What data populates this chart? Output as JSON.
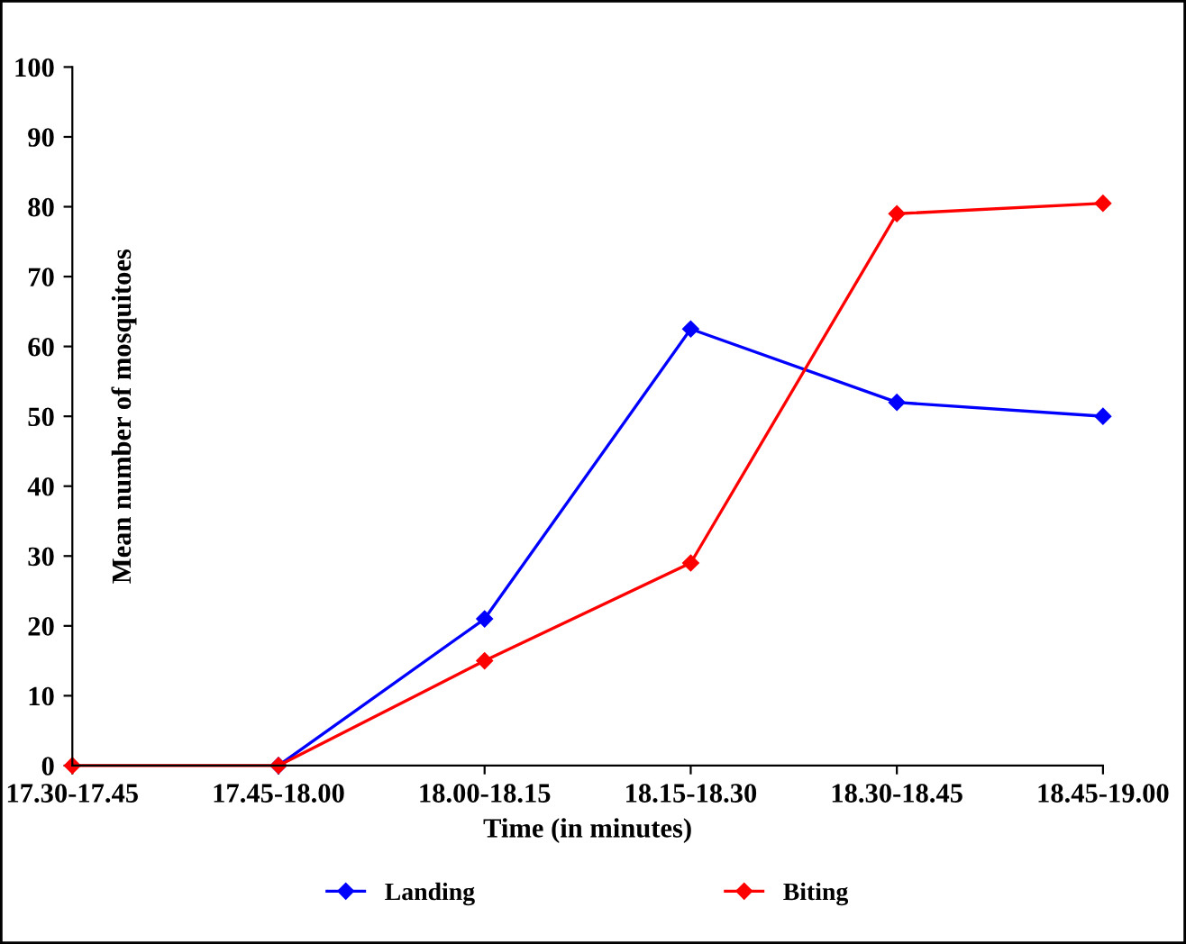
{
  "chart_data": {
    "type": "line",
    "xlabel": "Time (in minutes)",
    "ylabel": "Mean number of mosquitoes",
    "categories": [
      "17.30-17.45",
      "17.45-18.00",
      "18.00-18.15",
      "18.15-18.30",
      "18.30-18.45",
      "18.45-19.00"
    ],
    "series": [
      {
        "name": "Landing",
        "color": "#0000ff",
        "values": [
          null,
          0,
          21,
          62.5,
          52,
          50
        ]
      },
      {
        "name": "Biting",
        "color": "#ff0000",
        "values": [
          0,
          0,
          15,
          29,
          79,
          80.5
        ]
      }
    ],
    "ylim": [
      0,
      100
    ],
    "yticks": [
      0,
      10,
      20,
      30,
      40,
      50,
      60,
      70,
      80,
      90,
      100
    ],
    "marker": "diamond",
    "line_style": "solid",
    "grid": false,
    "legend": "bottom"
  }
}
